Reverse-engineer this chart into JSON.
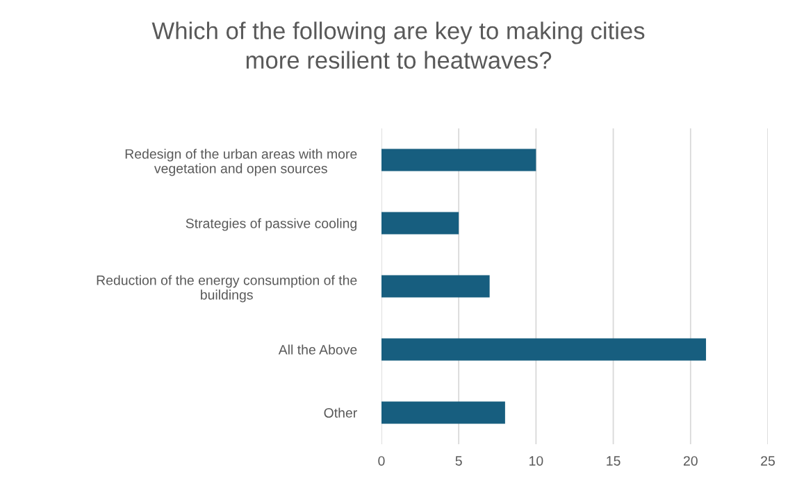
{
  "chart_data": {
    "type": "bar",
    "orientation": "horizontal",
    "title": "Which of the following are key to making cities\nmore resilient to heatwaves?",
    "categories": [
      "Redesign of the urban areas with more\nvegetation and open sources",
      "Strategies of passive cooling",
      "Reduction of the energy consumption of the\nbuildings",
      "All the Above",
      "Other"
    ],
    "values": [
      10,
      5,
      7,
      21,
      8
    ],
    "color": "#175e7f",
    "xlim": [
      0,
      25
    ],
    "xticks": [
      0,
      5,
      10,
      15,
      20,
      25
    ],
    "grid": "x",
    "legend": false
  }
}
